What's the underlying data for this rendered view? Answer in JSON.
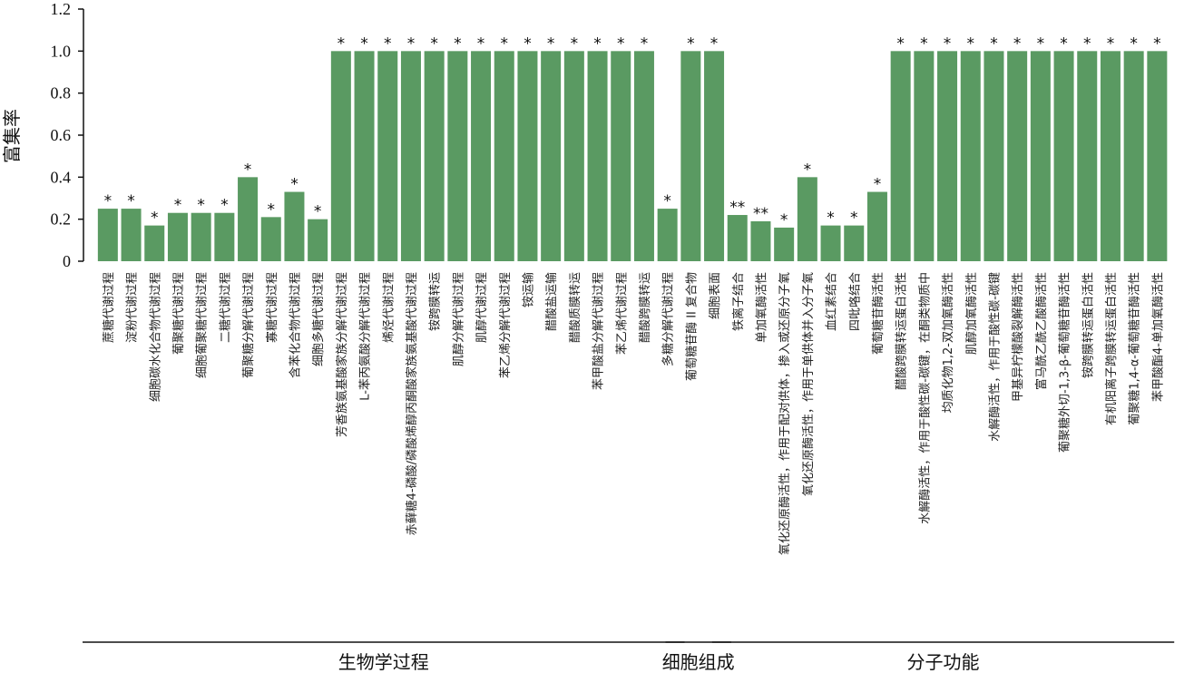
{
  "chart_data": {
    "type": "bar",
    "title": "",
    "xlabel": "",
    "ylabel": "富集率",
    "ylim": [
      0,
      1.2
    ],
    "yticks": [
      "0",
      "0.2",
      "0.4",
      "0.6",
      "0.8",
      "1.0",
      "1.2"
    ],
    "grid": false,
    "bar_color": "#5a9a62",
    "categories": [
      "蔗糖代谢过程",
      "淀粉代谢过程",
      "细胞碳水化合物代谢过程",
      "葡聚糖代谢过程",
      "细胞葡聚糖代谢过程",
      "二糖代谢过程",
      "葡聚糖分解代谢过程",
      "寡糖代谢过程",
      "含苯化合物代谢过程",
      "细胞多糖代谢过程",
      "芳香族氨基酸家族分解代谢过程",
      "L-苯丙氨酸分解代谢过程",
      "烯烃代谢过程",
      "赤藓糖4-磷酸/磷酸烯醇丙酮酸家族氨基酸代谢过程",
      "铵跨膜转运",
      "肌醇分解代谢过程",
      "肌醇代谢过程",
      "苯乙烯分解代谢过程",
      "铵运输",
      "醋酸盐运输",
      "醋酸质膜转运",
      "苯甲酸盐分解代谢过程",
      "苯乙烯代谢过程",
      "醋酸跨膜转运",
      "多糖分解代谢过程",
      "葡萄糖苷酶 II 复合物",
      "细胞表面",
      "铁离子结合",
      "单加氧酶活性",
      "氧化还原酶活性，作用于配对供体，掺入或还原分子氧",
      "氧化还原酶活性，作用于单供体并入分子氧",
      "血红素结合",
      "四吡咯结合",
      "葡萄糖苷酶活性",
      "醋酸跨膜转运蛋白活性",
      "水解酶活性，作用于酸性碳-碳键，在酮类物质中",
      "均质化物1,2-双加氧酶活性",
      "肌醇加氧酶活性",
      "水解酶活性，作用于酸性碳-碳键",
      "甲基异柠檬酸裂解酶活性",
      "富马酰乙酰乙酸酶活性",
      "葡聚糖外切-1,3-β-葡萄糖苷酶活性",
      "铵跨膜转运蛋白活性",
      "有机阳离子跨膜转运蛋白活性",
      "葡聚糖1,4-α-葡萄糖苷酶活性",
      "苯甲酸酯4-单加氧酶活性"
    ],
    "values": [
      0.25,
      0.25,
      0.17,
      0.23,
      0.23,
      0.23,
      0.4,
      0.21,
      0.33,
      0.2,
      1.0,
      1.0,
      1.0,
      1.0,
      1.0,
      1.0,
      1.0,
      1.0,
      1.0,
      1.0,
      1.0,
      1.0,
      1.0,
      1.0,
      0.25,
      1.0,
      1.0,
      0.22,
      0.19,
      0.16,
      0.4,
      0.17,
      0.17,
      0.33,
      1.0,
      1.0,
      1.0,
      1.0,
      1.0,
      1.0,
      1.0,
      1.0,
      1.0,
      1.0,
      1.0,
      1.0
    ],
    "significance": [
      "*",
      "*",
      "*",
      "*",
      "*",
      "*",
      "*",
      "*",
      "*",
      "*",
      "*",
      "*",
      "*",
      "*",
      "*",
      "*",
      "*",
      "*",
      "*",
      "*",
      "*",
      "*",
      "*",
      "*",
      "*",
      "*",
      "*",
      "**",
      "**",
      "*",
      "*",
      "*",
      "*",
      "*",
      "*",
      "*",
      "*",
      "*",
      "*",
      "*",
      "*",
      "*",
      "*",
      "*",
      "*",
      "*"
    ],
    "groups": [
      {
        "label": "生物学过程",
        "start": 0,
        "end": 24
      },
      {
        "label": "细胞组成",
        "start": 25,
        "end": 26
      },
      {
        "label": "分子功能",
        "start": 27,
        "end": 45
      }
    ]
  }
}
